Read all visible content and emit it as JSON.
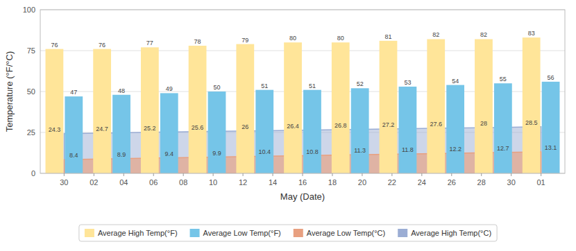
{
  "chart_data": {
    "type": "bar",
    "xlabel": "May (Date)",
    "ylabel": "Temperature (°F/°C)",
    "categories": [
      null,
      null,
      null,
      null,
      null,
      null,
      null,
      null,
      null,
      null,
      null
    ],
    "series": [
      {
        "name": "Average High Temp(°F)",
        "color": "#FFE599",
        "values": [
          76,
          76,
          77,
          78,
          79,
          80,
          80,
          81,
          82,
          82,
          83
        ]
      },
      {
        "name": "Average Low Temp(°F)",
        "color": "#75C5E8",
        "values": [
          47,
          48,
          49,
          50,
          51,
          51,
          52,
          53,
          54,
          55,
          56
        ]
      },
      {
        "name": "Average Low Temp(°C)",
        "color": "#E8A080",
        "type": "area",
        "values": [
          8.4,
          8.9,
          9.4,
          9.9,
          10.4,
          10.8,
          11.3,
          11.8,
          12.2,
          12.7,
          13.1
        ]
      },
      {
        "name": "Average High Temp(°C)",
        "color": "#9BADD4",
        "type": "area",
        "values": [
          24.3,
          24.7,
          25.2,
          25.6,
          26.0,
          26.4,
          26.8,
          27.2,
          27.6,
          28.0,
          28.5
        ]
      }
    ],
    "xlim": [
      -0.8,
      16.8
    ],
    "xticks": [
      {
        "value": 0,
        "label": "30"
      },
      {
        "value": 1,
        "label": "02"
      },
      {
        "value": 2,
        "label": "04"
      },
      {
        "value": 3,
        "label": "06"
      },
      {
        "value": 4,
        "label": "08"
      },
      {
        "value": 5,
        "label": "10"
      },
      {
        "value": 6,
        "label": "12"
      },
      {
        "value": 7,
        "label": "14"
      },
      {
        "value": 8,
        "label": "16"
      },
      {
        "value": 9,
        "label": "18"
      },
      {
        "value": 10,
        "label": "20"
      },
      {
        "value": 11,
        "label": "22"
      },
      {
        "value": 12,
        "label": "24"
      },
      {
        "value": 13,
        "label": "26"
      },
      {
        "value": 14,
        "label": "28"
      },
      {
        "value": 15,
        "label": "30"
      },
      {
        "value": 16,
        "label": "01"
      }
    ],
    "ylim": [
      0,
      100
    ],
    "yticks": [
      0,
      25,
      50,
      75,
      100
    ],
    "grid": true,
    "legend": "bottom",
    "data_labels": true
  }
}
